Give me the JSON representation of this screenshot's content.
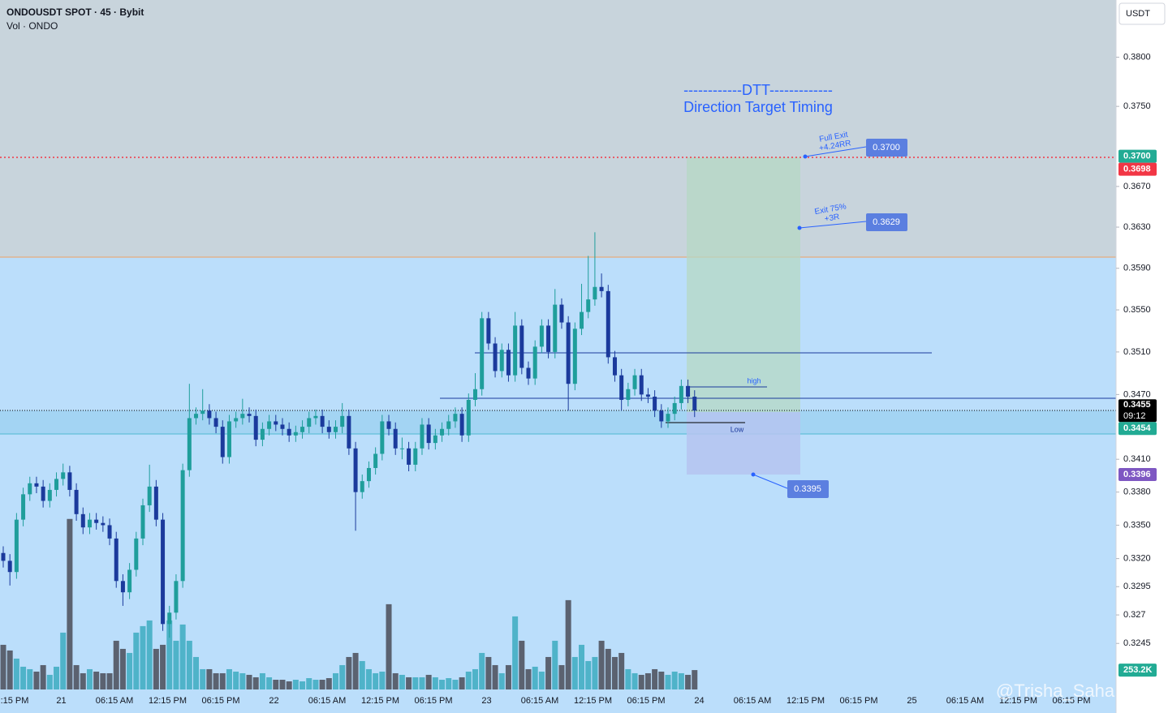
{
  "header": {
    "symbol": "ONDOUSDT SPOT · 45 · Bybit",
    "volume": "Vol · ONDO",
    "currency": "USDT"
  },
  "annotations": {
    "dtt": "------------DTT-------------",
    "dtt_subtitle": "Direction Target Timing",
    "full_exit": "Full Exit",
    "full_exit_rr": "+4.24RR",
    "exit75": "Exit 75%",
    "exit75_rr": "+3R",
    "target_full": "0.3700",
    "target_75": "0.3629",
    "stop": "0.3395",
    "high": "high",
    "low": "Low",
    "watermark": "@Trisha_Saha"
  },
  "chart_data": {
    "type": "candlestick",
    "log_scale": true,
    "up_color": "#1f9e9b",
    "down_color": "#1b3a9c",
    "volume_up_color": "#4fb3c9",
    "volume_down_color": "#5b6270",
    "ylim": [
      0.3205,
      0.3859
    ],
    "yticks": [
      {
        "value": 0.38,
        "label": "0.3800"
      },
      {
        "value": 0.375,
        "label": "0.3750"
      },
      {
        "value": 0.367,
        "label": "0.3670"
      },
      {
        "value": 0.363,
        "label": "0.3630"
      },
      {
        "value": 0.359,
        "label": "0.3590"
      },
      {
        "value": 0.355,
        "label": "0.3550"
      },
      {
        "value": 0.351,
        "label": "0.3510"
      },
      {
        "value": 0.347,
        "label": "0.3470"
      },
      {
        "value": 0.341,
        "label": "0.3410"
      },
      {
        "value": 0.338,
        "label": "0.3380"
      },
      {
        "value": 0.335,
        "label": "0.3350"
      },
      {
        "value": 0.332,
        "label": "0.3320"
      },
      0.3295,
      0.327,
      0.3245
    ],
    "price_labels": [
      {
        "value": 0.37,
        "label": "0.3700",
        "color": "#22ab94"
      },
      {
        "value": 0.3698,
        "label": "0.3698",
        "color": "#f23645"
      },
      {
        "value": 0.3455,
        "label": "0.3455",
        "sub": "09:12",
        "color": "#000000"
      },
      {
        "value": 0.3454,
        "label": "0.3454",
        "color": "#22ab94"
      },
      {
        "value": 0.3396,
        "label": "0.3396",
        "color": "#7e57c2"
      }
    ],
    "x_labels": [
      ":15 PM",
      "21",
      "06:15 AM",
      "12:15 PM",
      "06:15 PM",
      "22",
      "06:15 AM",
      "12:15 PM",
      "06:15 PM",
      "23",
      "06:15 AM",
      "12:15 PM",
      "06:15 PM",
      "24",
      "06:15 AM",
      "12:15 PM",
      "06:15 PM",
      "25",
      "06:15 AM",
      "12:15 PM",
      "06:15 PM"
    ],
    "ohlc": [
      [
        0.3325,
        0.3331,
        0.3312,
        0.3318
      ],
      [
        0.3318,
        0.3324,
        0.3296,
        0.3308
      ],
      [
        0.3308,
        0.3361,
        0.3302,
        0.3355
      ],
      [
        0.3355,
        0.3384,
        0.3349,
        0.3378
      ],
      [
        0.3378,
        0.3394,
        0.3372,
        0.3388
      ],
      [
        0.3388,
        0.3394,
        0.3379,
        0.3385
      ],
      [
        0.3385,
        0.3391,
        0.3366,
        0.3372
      ],
      [
        0.3372,
        0.3388,
        0.3366,
        0.3382
      ],
      [
        0.3382,
        0.3398,
        0.3376,
        0.3392
      ],
      [
        0.3392,
        0.3406,
        0.3386,
        0.3398
      ],
      [
        0.3398,
        0.3404,
        0.3376,
        0.3382
      ],
      [
        0.3382,
        0.3388,
        0.3354,
        0.336
      ],
      [
        0.336,
        0.3366,
        0.3342,
        0.3348
      ],
      [
        0.3348,
        0.3361,
        0.3342,
        0.3355
      ],
      [
        0.3355,
        0.3361,
        0.3346,
        0.3352
      ],
      [
        0.3352,
        0.3358,
        0.3344,
        0.335
      ],
      [
        0.335,
        0.3356,
        0.3332,
        0.3338
      ],
      [
        0.3338,
        0.3344,
        0.3294,
        0.33
      ],
      [
        0.33,
        0.3306,
        0.3278,
        0.329
      ],
      [
        0.329,
        0.3316,
        0.3284,
        0.331
      ],
      [
        0.331,
        0.3344,
        0.3304,
        0.3338
      ],
      [
        0.3338,
        0.3374,
        0.3332,
        0.3368
      ],
      [
        0.3368,
        0.3405,
        0.3362,
        0.3385
      ],
      [
        0.3385,
        0.3391,
        0.3349,
        0.3355
      ],
      [
        0.3355,
        0.3361,
        0.3256,
        0.3262
      ],
      [
        0.3262,
        0.3278,
        0.325,
        0.3272
      ],
      [
        0.3272,
        0.3306,
        0.3266,
        0.33
      ],
      [
        0.33,
        0.3406,
        0.3294,
        0.34
      ],
      [
        0.34,
        0.348,
        0.3394,
        0.3448
      ],
      [
        0.3448,
        0.3458,
        0.3442,
        0.3452
      ],
      [
        0.3452,
        0.3475,
        0.3446,
        0.3455
      ],
      [
        0.3455,
        0.3461,
        0.3442,
        0.3448
      ],
      [
        0.3448,
        0.3454,
        0.3434,
        0.344
      ],
      [
        0.344,
        0.3446,
        0.3406,
        0.3412
      ],
      [
        0.3412,
        0.3451,
        0.3406,
        0.3445
      ],
      [
        0.3445,
        0.3454,
        0.3439,
        0.3448
      ],
      [
        0.3448,
        0.3466,
        0.3442,
        0.3452
      ],
      [
        0.3452,
        0.3458,
        0.3444,
        0.345
      ],
      [
        0.345,
        0.3456,
        0.3422,
        0.3428
      ],
      [
        0.3428,
        0.3444,
        0.3422,
        0.3438
      ],
      [
        0.3438,
        0.3451,
        0.3432,
        0.3445
      ],
      [
        0.3445,
        0.3451,
        0.3436,
        0.3442
      ],
      [
        0.3442,
        0.3448,
        0.3432,
        0.3438
      ],
      [
        0.3438,
        0.3444,
        0.3426,
        0.3432
      ],
      [
        0.3432,
        0.3441,
        0.3426,
        0.3435
      ],
      [
        0.3435,
        0.3446,
        0.3429,
        0.344
      ],
      [
        0.344,
        0.3454,
        0.3434,
        0.3448
      ],
      [
        0.3448,
        0.3456,
        0.3442,
        0.345
      ],
      [
        0.345,
        0.3456,
        0.3434,
        0.344
      ],
      [
        0.344,
        0.3446,
        0.3429,
        0.3435
      ],
      [
        0.3435,
        0.3446,
        0.3429,
        0.344
      ],
      [
        0.344,
        0.3462,
        0.3434,
        0.345
      ],
      [
        0.345,
        0.3456,
        0.3414,
        0.342
      ],
      [
        0.342,
        0.3426,
        0.3345,
        0.338
      ],
      [
        0.338,
        0.3396,
        0.3374,
        0.339
      ],
      [
        0.339,
        0.3408,
        0.3384,
        0.3402
      ],
      [
        0.3402,
        0.3421,
        0.3396,
        0.3415
      ],
      [
        0.3415,
        0.3451,
        0.3409,
        0.3445
      ],
      [
        0.3445,
        0.3451,
        0.3432,
        0.3438
      ],
      [
        0.3438,
        0.3444,
        0.3414,
        0.342
      ],
      [
        0.342,
        0.343,
        0.341,
        0.342
      ],
      [
        0.342,
        0.3426,
        0.3399,
        0.3405
      ],
      [
        0.3405,
        0.3426,
        0.3399,
        0.342
      ],
      [
        0.342,
        0.3448,
        0.3414,
        0.3442
      ],
      [
        0.3442,
        0.3448,
        0.3419,
        0.3425
      ],
      [
        0.3425,
        0.3438,
        0.3419,
        0.3432
      ],
      [
        0.3432,
        0.3444,
        0.3426,
        0.3438
      ],
      [
        0.3438,
        0.3451,
        0.3432,
        0.3445
      ],
      [
        0.3445,
        0.3458,
        0.3439,
        0.3452
      ],
      [
        0.3452,
        0.3458,
        0.3426,
        0.3432
      ],
      [
        0.3432,
        0.3471,
        0.3426,
        0.3465
      ],
      [
        0.3465,
        0.349,
        0.3459,
        0.3475
      ],
      [
        0.3475,
        0.3548,
        0.3469,
        0.3542
      ],
      [
        0.3542,
        0.3548,
        0.3512,
        0.3518
      ],
      [
        0.3518,
        0.3524,
        0.3486,
        0.3492
      ],
      [
        0.3492,
        0.3518,
        0.3486,
        0.3512
      ],
      [
        0.3512,
        0.3518,
        0.3482,
        0.3488
      ],
      [
        0.3488,
        0.3548,
        0.3482,
        0.3535
      ],
      [
        0.3535,
        0.3541,
        0.3489,
        0.3495
      ],
      [
        0.3495,
        0.3501,
        0.3479,
        0.3485
      ],
      [
        0.3485,
        0.3521,
        0.3479,
        0.3515
      ],
      [
        0.3515,
        0.3541,
        0.3509,
        0.3535
      ],
      [
        0.3535,
        0.3541,
        0.3504,
        0.351
      ],
      [
        0.351,
        0.357,
        0.3504,
        0.3555
      ],
      [
        0.3555,
        0.3561,
        0.3532,
        0.3538
      ],
      [
        0.3538,
        0.3544,
        0.3455,
        0.348
      ],
      [
        0.348,
        0.3538,
        0.3474,
        0.3532
      ],
      [
        0.3532,
        0.3575,
        0.3526,
        0.3548
      ],
      [
        0.3548,
        0.3602,
        0.3542,
        0.356
      ],
      [
        0.356,
        0.3625,
        0.3554,
        0.3572
      ],
      [
        0.3572,
        0.3585,
        0.3562,
        0.3568
      ],
      [
        0.3568,
        0.3574,
        0.3499,
        0.3505
      ],
      [
        0.3505,
        0.3511,
        0.3482,
        0.3488
      ],
      [
        0.3488,
        0.3494,
        0.3455,
        0.3465
      ],
      [
        0.3465,
        0.3481,
        0.3459,
        0.3475
      ],
      [
        0.3475,
        0.3494,
        0.3469,
        0.3488
      ],
      [
        0.3488,
        0.3494,
        0.3464,
        0.347
      ],
      [
        0.347,
        0.3476,
        0.3462,
        0.3468
      ],
      [
        0.3468,
        0.3474,
        0.3449,
        0.3455
      ],
      [
        0.3455,
        0.3461,
        0.3439,
        0.3445
      ],
      [
        0.3445,
        0.3458,
        0.3439,
        0.3452
      ],
      [
        0.3452,
        0.3468,
        0.3446,
        0.3462
      ],
      [
        0.3462,
        0.3484,
        0.3456,
        0.3478
      ],
      [
        0.3478,
        0.3484,
        0.3462,
        0.3468
      ],
      [
        0.3468,
        0.3474,
        0.3449,
        0.3455
      ]
    ],
    "volume_lim": [
      0,
      9000
    ],
    "volume": [
      583,
      509,
      403,
      297,
      265,
      233,
      318,
      191,
      297,
      742,
      2226,
      318,
      212,
      265,
      233,
      212,
      212,
      636,
      530,
      477,
      742,
      827,
      901,
      530,
      583,
      901,
      636,
      848,
      636,
      424,
      265,
      265,
      212,
      212,
      265,
      233,
      212,
      191,
      159,
      212,
      159,
      127,
      127,
      106,
      127,
      106,
      148,
      127,
      127,
      148,
      212,
      318,
      424,
      477,
      371,
      265,
      212,
      233,
      1113,
      212,
      191,
      159,
      159,
      159,
      191,
      159,
      127,
      148,
      127,
      159,
      233,
      265,
      477,
      424,
      318,
      212,
      318,
      954,
      636,
      265,
      297,
      233,
      424,
      636,
      318,
      1166,
      424,
      583,
      371,
      424,
      636,
      530,
      424,
      477,
      265,
      212,
      191,
      212,
      265,
      233,
      191,
      233,
      212,
      191,
      253.2
    ],
    "volume_label": "253.2K"
  }
}
